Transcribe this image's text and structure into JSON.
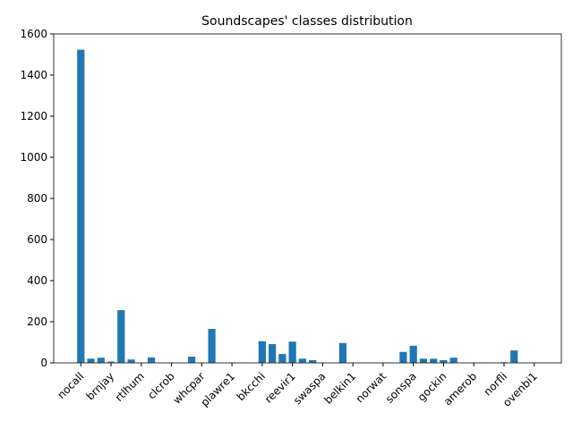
{
  "chart_data": {
    "type": "bar",
    "title": "Soundscapes' classes distribution",
    "categories": [
      "nocall",
      null,
      null,
      "brnjay",
      null,
      null,
      "rtlhum",
      null,
      null,
      "clcrob",
      null,
      null,
      "whcpar",
      null,
      null,
      "plawre1",
      null,
      null,
      "bkcchi",
      null,
      null,
      "reevir1",
      null,
      null,
      "swaspa",
      null,
      null,
      "belkin1",
      null,
      null,
      "norwat",
      null,
      null,
      "sonspa",
      null,
      null,
      "gockin",
      null,
      null,
      "amerob",
      null,
      null,
      "norfli",
      null,
      null,
      "ovenbi1"
    ],
    "values": [
      1525,
      22,
      27,
      8,
      258,
      18,
      0,
      28,
      0,
      4,
      0,
      32,
      0,
      167,
      0,
      4,
      0,
      0,
      107,
      93,
      45,
      105,
      22,
      15,
      0,
      0,
      98,
      3,
      0,
      0,
      0,
      3,
      55,
      85,
      22,
      22,
      15,
      27,
      0,
      4,
      4,
      0,
      5,
      62,
      0,
      0
    ],
    "color": "#1f77b4",
    "ylim": [
      0,
      1600
    ],
    "yticks": [
      0,
      200,
      400,
      600,
      800,
      1000,
      1200,
      1400,
      1600
    ],
    "grid": false
  }
}
